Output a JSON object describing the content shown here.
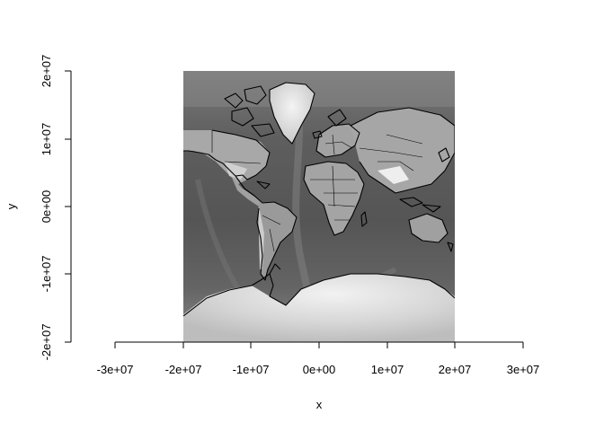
{
  "chart_data": {
    "type": "raster-map",
    "title": "",
    "xlabel": "x",
    "ylabel": "y",
    "xlim": [
      -30000000,
      30000000
    ],
    "ylim": [
      -20000000,
      20000000
    ],
    "x_ticks": [
      {
        "value": -30000000,
        "label": "-3e+07"
      },
      {
        "value": -20000000,
        "label": "-2e+07"
      },
      {
        "value": -10000000,
        "label": "-1e+07"
      },
      {
        "value": 0,
        "label": "0e+00"
      },
      {
        "value": 10000000,
        "label": "1e+07"
      },
      {
        "value": 20000000,
        "label": "2e+07"
      },
      {
        "value": 30000000,
        "label": "3e+07"
      }
    ],
    "y_ticks": [
      {
        "value": -20000000,
        "label": "-2e+07"
      },
      {
        "value": -10000000,
        "label": "-1e+07"
      },
      {
        "value": 0,
        "label": "0e+00"
      },
      {
        "value": 10000000,
        "label": "1e+07"
      },
      {
        "value": 20000000,
        "label": "2e+07"
      }
    ],
    "raster_extent": {
      "xmin": -20000000,
      "xmax": 20000000,
      "ymin": -20000000,
      "ymax": 20000000
    },
    "projection": "Mercator",
    "colormap": "grayscale",
    "overlay": "country boundaries",
    "grid": false,
    "legend": "none"
  }
}
